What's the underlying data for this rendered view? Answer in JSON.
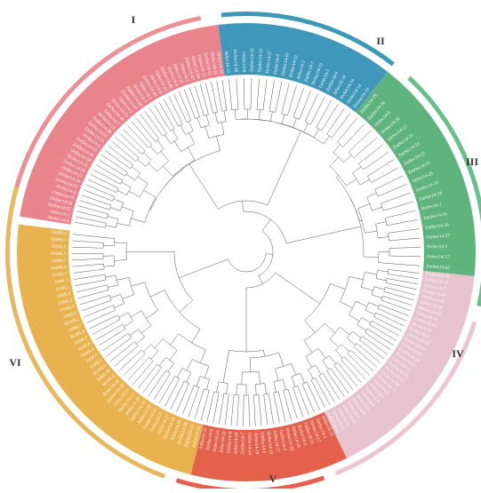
{
  "figure": {
    "clades": [
      {
        "id": "I",
        "label": "I",
        "color": "#e9848c",
        "ring": "#ee8f95",
        "leaves": [
          "HvSec14-3",
          "OsSec14-2",
          "ZmSec14-55",
          "ZmSec14-56",
          "OsSec14-19",
          "HvSec14-4",
          "ZmSec14-57",
          "HvSec14-20",
          "OsSec14-23",
          "ZmSec14-28",
          "HvSec14-21",
          "OsSec14-18",
          "ZmSec14-30",
          "ZmSec14-31",
          "HvSec14-5",
          "OsSec14-13",
          "ZmSec14-35",
          "ZmSec14-36",
          "HvSec14-22",
          "OsSec14-7",
          "ZmSec14-40",
          "HvSec14-23",
          "OsSec14-5",
          "ZmSec14-42",
          "ZmSec14-43",
          "HvSec14-7",
          "OsSec14-3",
          "ZmSec14-44",
          "HvSec14-8",
          "OsSec14-22",
          "ZmSec14-46",
          "HvSec14-9",
          "AtSec14-21",
          "AtSec14-5",
          "ZmSec14-47",
          "HvSec14-24",
          "OsSec14-11",
          "ZmSec14-51",
          "HvSec14-25",
          "OsSec14-12"
        ]
      },
      {
        "id": "II",
        "label": "II",
        "color": "#3f97b9",
        "ring": "#3a9ab8",
        "leaves": [
          "AtSec14-13",
          "HvSec14-26",
          "OsSec14-8",
          "ZmSec14-52",
          "ZmSec14-53",
          "HvSec14-27",
          "OsSec14-9",
          "ZmSec14-61",
          "HvSec14-12",
          "AtSec14-2",
          "ZmSec14-3",
          "HvSec14-13",
          "OsSec14-1",
          "ZmSec14-6",
          "AtSec14-19",
          "HvSec14-14",
          "OsSec14-14",
          "ZmSec14-10"
        ]
      },
      {
        "id": "III",
        "label": "III",
        "color": "#5fb47d",
        "ring": "#69bf8a",
        "leaves": [
          "ZmSec14-19",
          "ZmSec14-38",
          "OsSec14-6",
          "HvSec14-16",
          "ZmSec14-13",
          "ZmSec14-21",
          "ZmSec14-59",
          "ZmSec14-22",
          "ZmSec14-23",
          "AtSec14-29",
          "ZmSec14-33",
          "ZmSec14-34",
          "HvSec14-1",
          "ZmSec14-24",
          "ZmSec14-26",
          "ZmSec14-27",
          "HvSec14-2",
          "OsSec14-17",
          "ZmSec14-65"
        ]
      },
      {
        "id": "IV",
        "label": "IV",
        "color": "#e7c2cf",
        "ring": "#ebc5d0",
        "leaves": [
          "ZmSec14-18",
          "ZmSec14-12",
          "ZmSec14-27",
          "ZmSec14-49",
          "ZmSec14-50",
          "ZmSec14-48",
          "ZmSec14-82",
          "OsSec14-10",
          "ZmSec14-66",
          "HvSec14-6",
          "OsSec14-4",
          "ZmSec14-25",
          "HvSec14-10",
          "OsSec14-20",
          "ZmSec14-29",
          "HvSec14-11",
          "OsSec14-15",
          "ZmSec14-70",
          "HvSec14-15",
          "OsSec14-16",
          "ZmSec14-71",
          "AtSec14-1",
          "AtSec14-3",
          "AtSec14-4",
          "AtSec14-6",
          "AtSec14-7",
          "AtSec14-8",
          "AtSec14-9",
          "AtSec14-10",
          "AtSec14-11",
          "AtSec14-12",
          "AtSec14-14"
        ]
      },
      {
        "id": "V",
        "label": "V",
        "color": "#e4614c",
        "ring": "#e55e4e",
        "leaves": [
          "AtSec14-15",
          "ZmSec14-1",
          "HvSec14-17",
          "OsSec14-21",
          "ZmSec14-2",
          "AtSec14-16",
          "HvSec14-18",
          "ZmSec14-4",
          "AtSec14-17",
          "HvSec14-19",
          "ZmSec14-5",
          "AtSec14-18",
          "OsSec14-24",
          "ZmSec14-7",
          "AtSec14-20",
          "ZmSec14-8",
          "AtSec14-22",
          "AtSec14-23",
          "ZmSec14-9",
          "AtSec14-24"
        ]
      },
      {
        "id": "VI",
        "label": "VI",
        "color": "#e8b34e",
        "ring": "#e9b75c",
        "leaves": [
          "AtSec14-25",
          "ZmSec14-11",
          "HvSec14-28",
          "AtSec14-26",
          "ZmSec14-14",
          "AtSec14-27",
          "OsSec14-25",
          "ZmSec14-15",
          "AtSec14-28",
          "ZmSec14-16",
          "AtSec14-30",
          "ZmSec14-17",
          "AtSec14-31",
          "ZmSec14-20",
          "AtSec14-32",
          "HvML6",
          "AtML10",
          "HvML5",
          "AtML2",
          "AtML6",
          "OsML4",
          "AtML8",
          "AtML3",
          "HvML4",
          "AtML7",
          "HvML2",
          "AtML9",
          "HvML3",
          "OsML2",
          "AtML4",
          "AtML5",
          "AtML1",
          "HvML7",
          "ZmML2",
          "OsML3",
          "HvML1",
          "OsML1",
          "ZmML1",
          "ZmML4"
        ]
      }
    ]
  }
}
